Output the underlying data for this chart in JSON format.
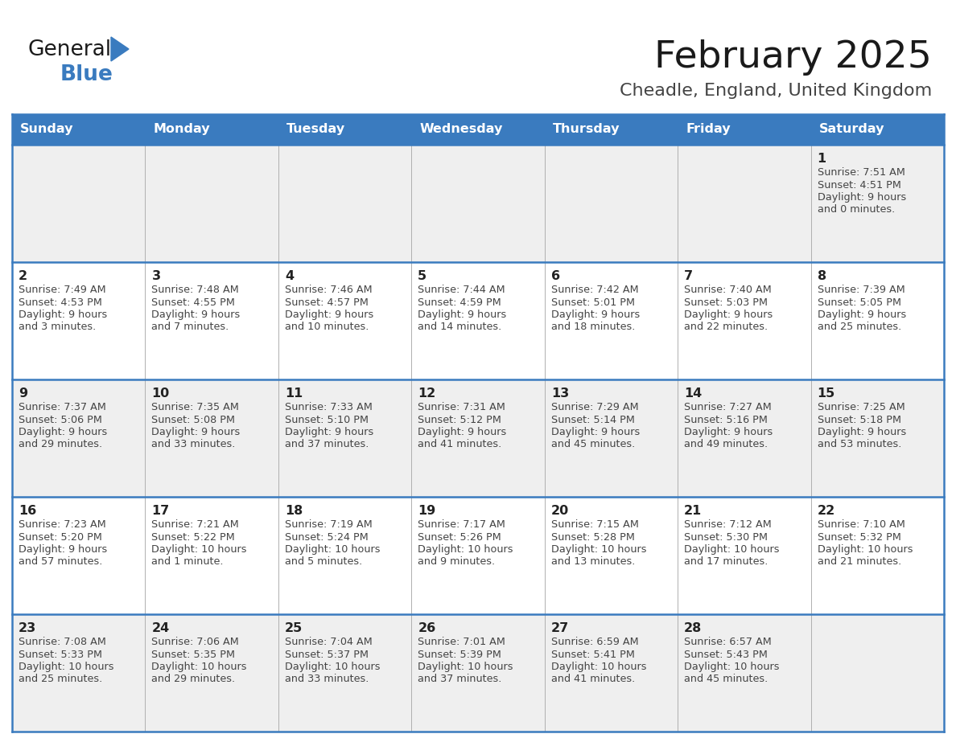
{
  "title": "February 2025",
  "subtitle": "Cheadle, England, United Kingdom",
  "days_of_week": [
    "Sunday",
    "Monday",
    "Tuesday",
    "Wednesday",
    "Thursday",
    "Friday",
    "Saturday"
  ],
  "header_bg": "#3a7bbf",
  "header_text_color": "#ffffff",
  "cell_bg_light": "#efefef",
  "cell_bg_white": "#ffffff",
  "border_color": "#3a7bbf",
  "text_color": "#444444",
  "day_num_color": "#222222",
  "title_color": "#1a1a1a",
  "subtitle_color": "#444444",
  "logo_general_color": "#1a1a1a",
  "logo_blue_color": "#3a7bbf",
  "calendar_data": [
    [
      {
        "day": null,
        "info": ""
      },
      {
        "day": null,
        "info": ""
      },
      {
        "day": null,
        "info": ""
      },
      {
        "day": null,
        "info": ""
      },
      {
        "day": null,
        "info": ""
      },
      {
        "day": null,
        "info": ""
      },
      {
        "day": 1,
        "info": "Sunrise: 7:51 AM\nSunset: 4:51 PM\nDaylight: 9 hours\nand 0 minutes."
      }
    ],
    [
      {
        "day": 2,
        "info": "Sunrise: 7:49 AM\nSunset: 4:53 PM\nDaylight: 9 hours\nand 3 minutes."
      },
      {
        "day": 3,
        "info": "Sunrise: 7:48 AM\nSunset: 4:55 PM\nDaylight: 9 hours\nand 7 minutes."
      },
      {
        "day": 4,
        "info": "Sunrise: 7:46 AM\nSunset: 4:57 PM\nDaylight: 9 hours\nand 10 minutes."
      },
      {
        "day": 5,
        "info": "Sunrise: 7:44 AM\nSunset: 4:59 PM\nDaylight: 9 hours\nand 14 minutes."
      },
      {
        "day": 6,
        "info": "Sunrise: 7:42 AM\nSunset: 5:01 PM\nDaylight: 9 hours\nand 18 minutes."
      },
      {
        "day": 7,
        "info": "Sunrise: 7:40 AM\nSunset: 5:03 PM\nDaylight: 9 hours\nand 22 minutes."
      },
      {
        "day": 8,
        "info": "Sunrise: 7:39 AM\nSunset: 5:05 PM\nDaylight: 9 hours\nand 25 minutes."
      }
    ],
    [
      {
        "day": 9,
        "info": "Sunrise: 7:37 AM\nSunset: 5:06 PM\nDaylight: 9 hours\nand 29 minutes."
      },
      {
        "day": 10,
        "info": "Sunrise: 7:35 AM\nSunset: 5:08 PM\nDaylight: 9 hours\nand 33 minutes."
      },
      {
        "day": 11,
        "info": "Sunrise: 7:33 AM\nSunset: 5:10 PM\nDaylight: 9 hours\nand 37 minutes."
      },
      {
        "day": 12,
        "info": "Sunrise: 7:31 AM\nSunset: 5:12 PM\nDaylight: 9 hours\nand 41 minutes."
      },
      {
        "day": 13,
        "info": "Sunrise: 7:29 AM\nSunset: 5:14 PM\nDaylight: 9 hours\nand 45 minutes."
      },
      {
        "day": 14,
        "info": "Sunrise: 7:27 AM\nSunset: 5:16 PM\nDaylight: 9 hours\nand 49 minutes."
      },
      {
        "day": 15,
        "info": "Sunrise: 7:25 AM\nSunset: 5:18 PM\nDaylight: 9 hours\nand 53 minutes."
      }
    ],
    [
      {
        "day": 16,
        "info": "Sunrise: 7:23 AM\nSunset: 5:20 PM\nDaylight: 9 hours\nand 57 minutes."
      },
      {
        "day": 17,
        "info": "Sunrise: 7:21 AM\nSunset: 5:22 PM\nDaylight: 10 hours\nand 1 minute."
      },
      {
        "day": 18,
        "info": "Sunrise: 7:19 AM\nSunset: 5:24 PM\nDaylight: 10 hours\nand 5 minutes."
      },
      {
        "day": 19,
        "info": "Sunrise: 7:17 AM\nSunset: 5:26 PM\nDaylight: 10 hours\nand 9 minutes."
      },
      {
        "day": 20,
        "info": "Sunrise: 7:15 AM\nSunset: 5:28 PM\nDaylight: 10 hours\nand 13 minutes."
      },
      {
        "day": 21,
        "info": "Sunrise: 7:12 AM\nSunset: 5:30 PM\nDaylight: 10 hours\nand 17 minutes."
      },
      {
        "day": 22,
        "info": "Sunrise: 7:10 AM\nSunset: 5:32 PM\nDaylight: 10 hours\nand 21 minutes."
      }
    ],
    [
      {
        "day": 23,
        "info": "Sunrise: 7:08 AM\nSunset: 5:33 PM\nDaylight: 10 hours\nand 25 minutes."
      },
      {
        "day": 24,
        "info": "Sunrise: 7:06 AM\nSunset: 5:35 PM\nDaylight: 10 hours\nand 29 minutes."
      },
      {
        "day": 25,
        "info": "Sunrise: 7:04 AM\nSunset: 5:37 PM\nDaylight: 10 hours\nand 33 minutes."
      },
      {
        "day": 26,
        "info": "Sunrise: 7:01 AM\nSunset: 5:39 PM\nDaylight: 10 hours\nand 37 minutes."
      },
      {
        "day": 27,
        "info": "Sunrise: 6:59 AM\nSunset: 5:41 PM\nDaylight: 10 hours\nand 41 minutes."
      },
      {
        "day": 28,
        "info": "Sunrise: 6:57 AM\nSunset: 5:43 PM\nDaylight: 10 hours\nand 45 minutes."
      },
      {
        "day": null,
        "info": ""
      }
    ]
  ],
  "row_bg": [
    "#efefef",
    "#ffffff",
    "#efefef",
    "#ffffff",
    "#efefef"
  ]
}
